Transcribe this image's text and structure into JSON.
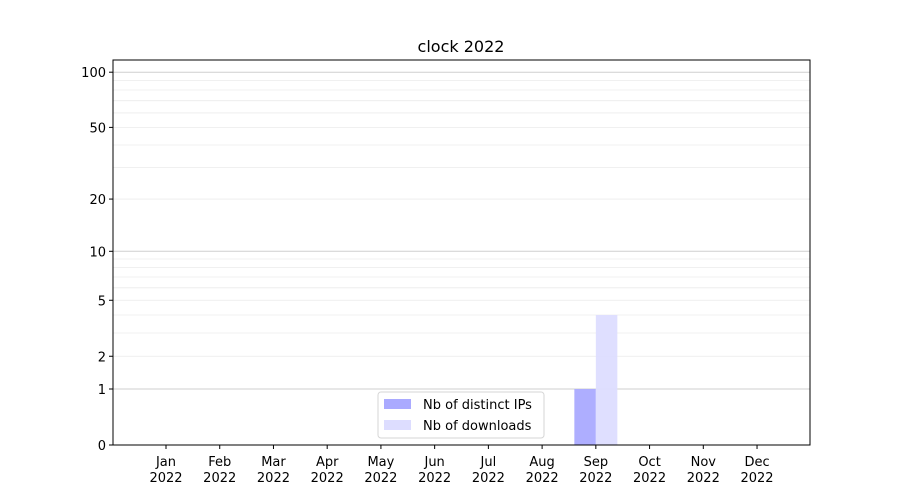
{
  "chart_data": {
    "type": "bar",
    "title": "clock 2022",
    "xlabel": "",
    "ylabel": "",
    "y_scale": "symlog (log of 1+y)",
    "ylim": [
      0,
      116
    ],
    "y_ticks": [
      0,
      1,
      2,
      5,
      10,
      20,
      50,
      100
    ],
    "y_tick_labels": [
      "0",
      "1",
      "2",
      "5",
      "10",
      "20",
      "50",
      "100"
    ],
    "grid": true,
    "categories": [
      "Jan\n2022",
      "Feb\n2022",
      "Mar\n2022",
      "Apr\n2022",
      "May\n2022",
      "Jun\n2022",
      "Jul\n2022",
      "Aug\n2022",
      "Sep\n2022",
      "Oct\n2022",
      "Nov\n2022",
      "Dec\n2022"
    ],
    "category_months": [
      "Jan",
      "Feb",
      "Mar",
      "Apr",
      "May",
      "Jun",
      "Jul",
      "Aug",
      "Sep",
      "Oct",
      "Nov",
      "Dec"
    ],
    "category_year": "2022",
    "series": [
      {
        "name": "Nb of distinct IPs",
        "color": "#aaaaff",
        "values": [
          0,
          0,
          0,
          0,
          0,
          0,
          0,
          0,
          1,
          0,
          0,
          0
        ]
      },
      {
        "name": "Nb of downloads",
        "color": "#ddddff",
        "values": [
          0,
          0,
          0,
          0,
          0,
          0,
          0,
          0,
          4,
          0,
          0,
          0
        ]
      }
    ],
    "legend_position": "lower center"
  }
}
